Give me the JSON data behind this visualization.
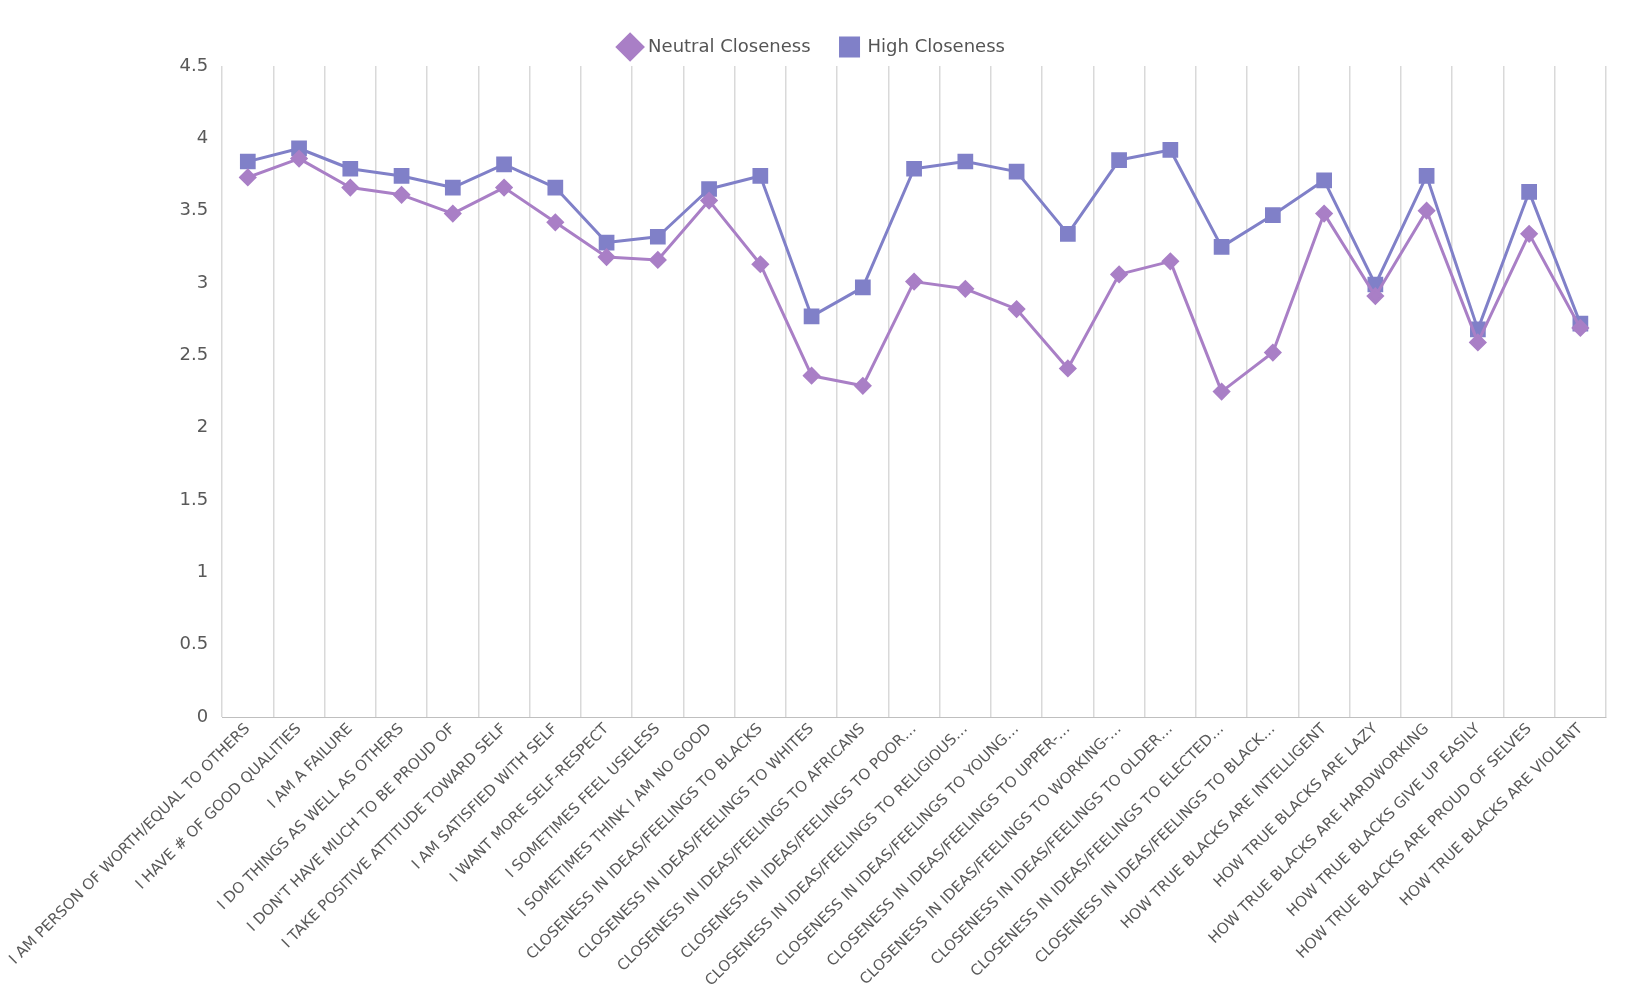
{
  "chart_data": {
    "type": "line",
    "categories": [
      "I AM PERSON OF WORTH/EQUAL TO OTHERS",
      "I HAVE # OF GOOD QUALITIES",
      "I AM A FAILURE",
      "I DO THINGS AS WELL AS OTHERS",
      "I DON'T HAVE MUCH TO BE PROUD OF",
      "I TAKE POSITIVE ATTITUDE TOWARD SELF",
      "I AM SATISFIED WITH SELF",
      "I WANT MORE SELF-RESPECT",
      "I SOMETIMES FEEL USELESS",
      "I SOMETIMES THINK I AM NO GOOD",
      "CLOSENESS IN IDEAS/FEELINGS TO BLACKS",
      "CLOSENESS IN IDEAS/FEELINGS TO WHITES",
      "CLOSENESS IN IDEAS/FEELINGS TO AFRICANS",
      "CLOSENESS IN IDEAS/FEELINGS TO POOR…",
      "CLOSENESS IN IDEAS/FEELINGS TO RELIGIOUS…",
      "CLOSENESS IN IDEAS/FEELINGS TO YOUNG…",
      "CLOSENESS IN IDEAS/FEELINGS TO UPPER-…",
      "CLOSENESS IN IDEAS/FEELINGS TO WORKING-…",
      "CLOSENESS IN IDEAS/FEELINGS TO OLDER…",
      "CLOSENESS IN IDEAS/FEELINGS TO ELECTED…",
      "CLOSENESS IN IDEAS/FEELINGS TO BLACK…",
      "HOW TRUE BLACKS ARE INTELLIGENT",
      "HOW TRUE BLACKS ARE LAZY",
      "HOW TRUE BLACKS ARE HARDWORKING",
      "HOW TRUE BLACKS GIVE UP EASILY",
      "HOW TRUE BLACKS ARE PROUD OF SELVES",
      "HOW TRUE BLACKS ARE VIOLENT"
    ],
    "series": [
      {
        "name": "Neutral Closeness",
        "color": "#a97fc6",
        "marker": "diamond",
        "values": [
          3.73,
          3.86,
          3.66,
          3.61,
          3.48,
          3.66,
          3.42,
          3.18,
          3.16,
          3.57,
          3.13,
          2.36,
          2.29,
          3.01,
          2.96,
          2.82,
          2.41,
          3.06,
          3.15,
          2.25,
          2.52,
          3.48,
          2.91,
          3.5,
          2.59,
          3.34,
          2.69
        ]
      },
      {
        "name": "High Closeness",
        "color": "#8080c8",
        "marker": "square",
        "values": [
          3.84,
          3.93,
          3.79,
          3.74,
          3.66,
          3.82,
          3.66,
          3.28,
          3.32,
          3.65,
          3.74,
          2.77,
          2.97,
          3.79,
          3.84,
          3.77,
          3.34,
          3.85,
          3.92,
          3.25,
          3.47,
          3.71,
          2.99,
          3.74,
          2.68,
          3.63,
          2.72
        ]
      }
    ],
    "ylim": [
      0,
      4.5
    ],
    "yticks": [
      0,
      0.5,
      1,
      1.5,
      2,
      2.5,
      3,
      3.5,
      4,
      4.5
    ],
    "grid": "x",
    "legend": "top",
    "line_style": "solid"
  }
}
